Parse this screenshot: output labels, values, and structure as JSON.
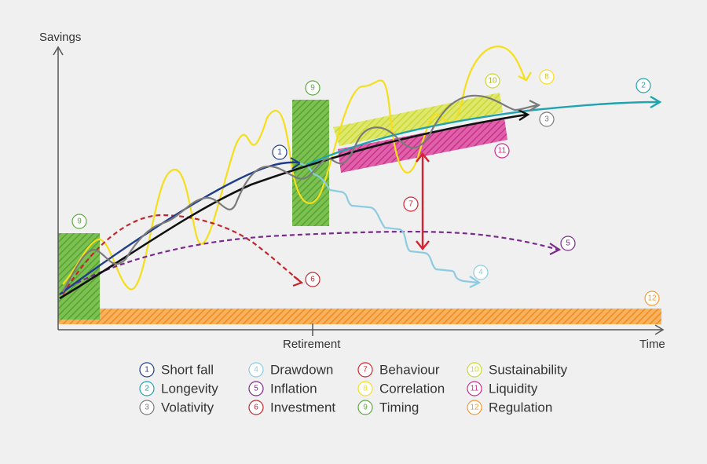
{
  "axes": {
    "y_label": "Savings",
    "x_label": "Time",
    "x_tick_label": "Retirement"
  },
  "colors": {
    "short_fall": "#1f3d8c",
    "longevity": "#1fa3b0",
    "volatility": "#7a7a7a",
    "drawdown": "#8ccce0",
    "inflation": "#7a2a8c",
    "investment": "#c0282e",
    "behaviour": "#d82030",
    "correlation": "#f5de1a",
    "timing": "#5aaa3c",
    "sustainability": "#c8d930",
    "liquidity": "#cc2a8c",
    "regulation": "#f39a32",
    "axis": "#555555",
    "main_trend": "#111111"
  },
  "legend": [
    {
      "num": "1",
      "label": "Short fall",
      "color": "#1f3d8c"
    },
    {
      "num": "2",
      "label": "Longevity",
      "color": "#1fa3b0"
    },
    {
      "num": "3",
      "label": "Volativity",
      "color": "#7a7a7a"
    },
    {
      "num": "4",
      "label": "Drawdown",
      "color": "#8ccce0"
    },
    {
      "num": "5",
      "label": "Inflation",
      "color": "#7a2a8c"
    },
    {
      "num": "6",
      "label": "Investment",
      "color": "#c0282e"
    },
    {
      "num": "7",
      "label": "Behaviour",
      "color": "#d82030"
    },
    {
      "num": "8",
      "label": "Correlation",
      "color": "#f5de1a"
    },
    {
      "num": "9",
      "label": "Timing",
      "color": "#5aaa3c"
    },
    {
      "num": "10",
      "label": "Sustainability",
      "color": "#c8d930"
    },
    {
      "num": "11",
      "label": "Liquidity",
      "color": "#cc2a8c"
    },
    {
      "num": "12",
      "label": "Regulation",
      "color": "#f39a32"
    }
  ],
  "badges": {
    "b1": "1",
    "b2": "2",
    "b3": "3",
    "b4": "4",
    "b5": "5",
    "b6": "6",
    "b7": "7",
    "b8": "8",
    "b9a": "9",
    "b9b": "9",
    "b10": "10",
    "b11": "11",
    "b12": "12"
  }
}
